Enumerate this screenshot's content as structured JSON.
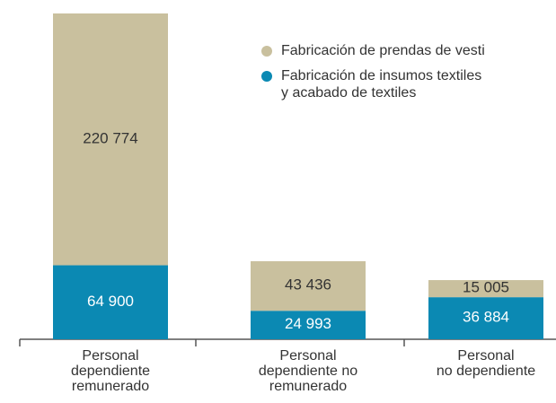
{
  "chart_data": {
    "type": "stacked_bar",
    "categories": [
      "Personal\ndependiente\nremunerado",
      "Personal\ndependiente no\nremunerado",
      "Personal\nno dependiente"
    ],
    "series": [
      {
        "name": "Fabricación de insumos textiles\ny acabado de textiles",
        "color": "#0b89b3",
        "values": [
          64900,
          24993,
          36884
        ],
        "value_labels": [
          "64 900",
          "24 993",
          "36 884"
        ]
      },
      {
        "name": "Fabricación de prendas de vesti",
        "color": "#c9c09e",
        "values": [
          220774,
          43436,
          15005
        ],
        "value_labels": [
          "220 774",
          "43 436",
          "15 005"
        ]
      }
    ],
    "legend": "top-right"
  }
}
